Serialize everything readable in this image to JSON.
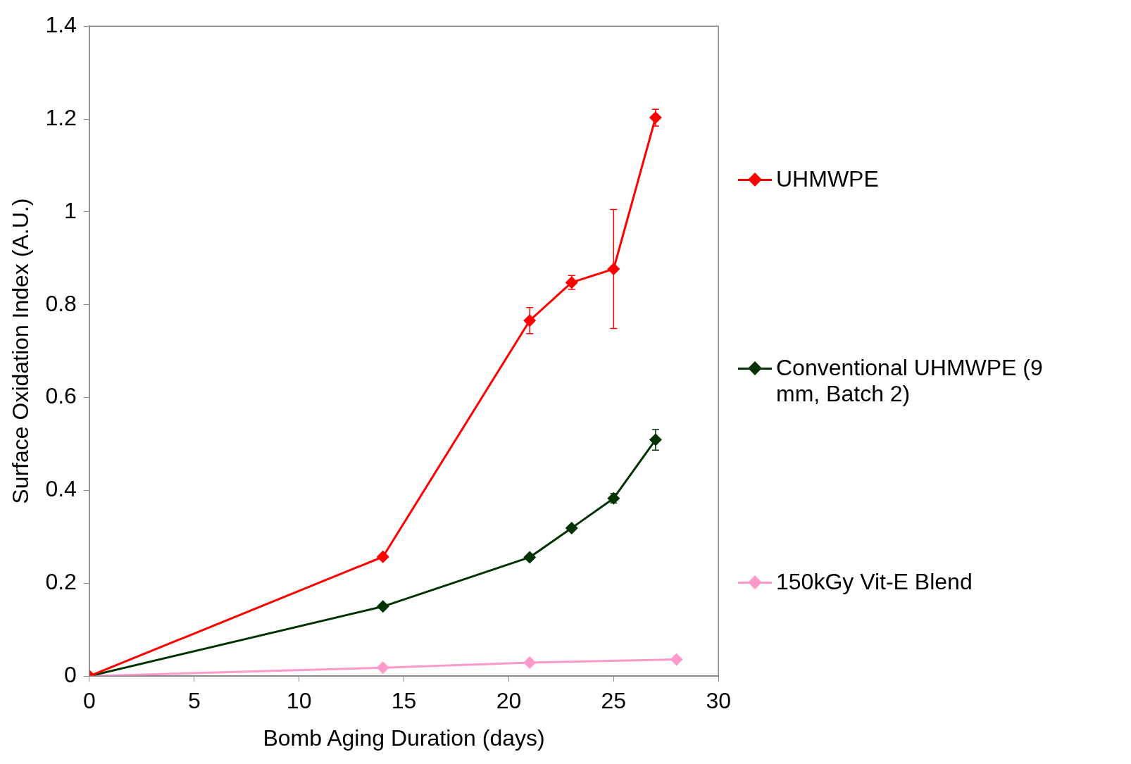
{
  "chart_data": {
    "type": "line",
    "xlabel": "Bomb Aging Duration (days)",
    "ylabel": "Surface Oxidation Index (A.U.)",
    "xlim": [
      0,
      30
    ],
    "xticks": [
      0,
      5,
      10,
      15,
      20,
      25,
      30
    ],
    "ylim": [
      0,
      1.4
    ],
    "yticks": [
      0,
      0.2,
      0.4,
      0.6,
      0.8,
      1,
      1.2,
      1.4
    ],
    "grid": false,
    "legend": "right",
    "marker": "diamond",
    "line_style": "solid",
    "series": [
      {
        "name": "UHMWPE",
        "color": "#ff0000",
        "x": [
          0,
          14,
          21,
          23,
          25,
          27
        ],
        "values": [
          0,
          0.257,
          0.766,
          0.848,
          0.877,
          1.203
        ],
        "errors": [
          null,
          null,
          0.028,
          0.015,
          0.128,
          0.018
        ]
      },
      {
        "name": "Conventional UHMWPE (9 mm, Batch 2)",
        "color": "#003300",
        "x": [
          0,
          14,
          21,
          23,
          25,
          27
        ],
        "values": [
          0,
          0.15,
          0.256,
          0.319,
          0.383,
          0.509
        ],
        "errors": [
          null,
          null,
          null,
          null,
          0.01,
          0.022
        ]
      },
      {
        "name": "150kGy Vit-E Blend",
        "color": "#ff99cc",
        "x": [
          0,
          14,
          21,
          28
        ],
        "values": [
          0,
          0.018,
          0.029,
          0.036
        ]
      }
    ]
  }
}
